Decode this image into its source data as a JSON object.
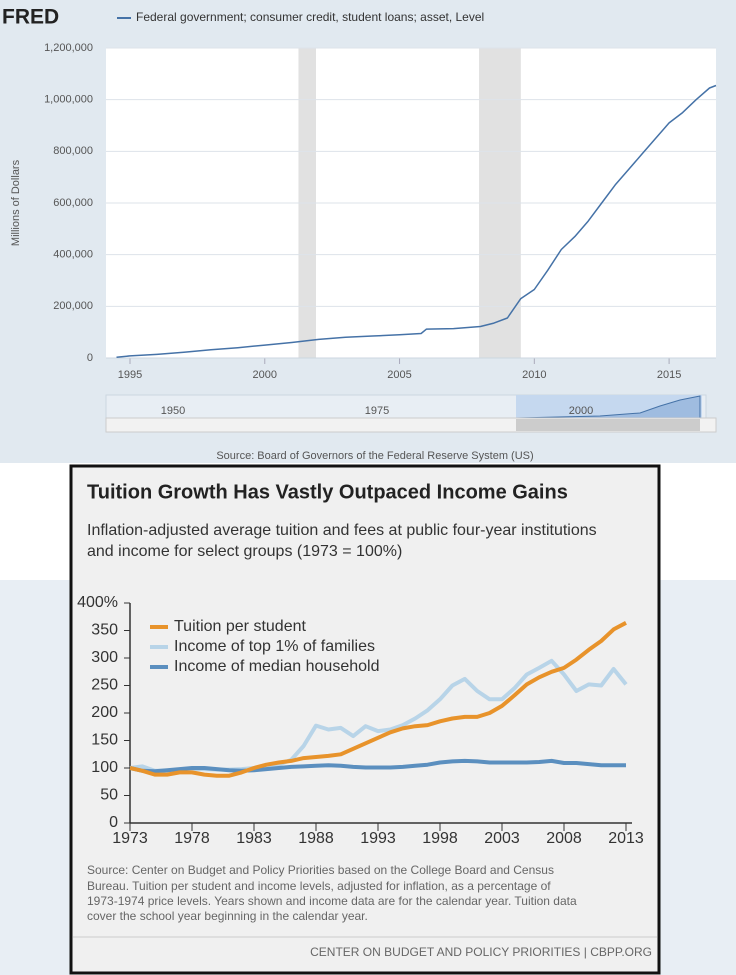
{
  "chart_data": [
    {
      "type": "line",
      "logo": "FRED",
      "y_label": "Millions of Dollars",
      "source": "Source: Board of Governors of the Federal Reserve System (US)",
      "navigator_labels": [
        "1950",
        "1975",
        "2000"
      ],
      "xlim": [
        1994.11,
        2016.74
      ],
      "xticks": [
        1995,
        2000,
        2005,
        2010,
        2015
      ],
      "ylim": [
        0,
        1200000
      ],
      "yticks": [
        0,
        {
          "value": 200000,
          "label": "200,000"
        },
        {
          "value": 400000,
          "label": "400,000"
        },
        {
          "value": 600000,
          "label": "600,000"
        },
        {
          "value": 800000,
          "label": "800,000"
        },
        {
          "value": 1000000,
          "label": "1,000,000"
        },
        {
          "value": 1200000,
          "label": "1,200,000"
        }
      ],
      "grid": true,
      "recessions": [
        [
          2001.25,
          2001.9
        ],
        [
          2007.95,
          2009.5
        ]
      ],
      "x": [
        1994.5,
        1995,
        1996,
        1997,
        1998,
        1999,
        2000,
        2001,
        2002,
        2003,
        2004,
        2005,
        2005.8,
        2006,
        2007,
        2008,
        2008.5,
        2009,
        2009.5,
        2010,
        2010.5,
        2011,
        2011.5,
        2012,
        2012.5,
        2013,
        2013.5,
        2014,
        2014.5,
        2015,
        2015.5,
        2016,
        2016.5,
        2016.74
      ],
      "series": [
        {
          "name": "Federal government; consumer credit, student loans; asset, Level",
          "color": "#4572a7",
          "values": [
            3000,
            8000,
            14000,
            22000,
            32000,
            40000,
            50000,
            60000,
            72000,
            80000,
            85000,
            90000,
            95000,
            112000,
            114000,
            122000,
            135000,
            155000,
            230000,
            265000,
            340000,
            420000,
            470000,
            530000,
            600000,
            670000,
            730000,
            790000,
            850000,
            910000,
            950000,
            1000000,
            1045000,
            1055000
          ]
        }
      ]
    },
    {
      "type": "line",
      "title": "Tuition Growth Has Vastly Outpaced Income Gains",
      "subtitle": [
        "Inflation-adjusted average tuition and fees at public four-year institutions",
        "and income for select groups (1973 = 100%)"
      ],
      "source": [
        "Source: Center on Budget and Policy Priorities based on the College Board and Census",
        "Bureau. Tuition per student and income levels, adjusted for inflation, as a percentage of",
        "1973-1974 price levels. Years shown and income data are for the calendar year. Tuition data",
        "cover the school year beginning in the calendar year."
      ],
      "footer": "CENTER ON BUDGET AND POLICY PRIORITIES | CBPP.ORG",
      "xlim": [
        1973,
        2013
      ],
      "xticks": [
        1973,
        1978,
        1983,
        1988,
        1993,
        1998,
        2003,
        2008,
        2013
      ],
      "ylim": [
        0,
        400
      ],
      "yticks": [
        0,
        50,
        100,
        150,
        200,
        250,
        300,
        350,
        {
          "value": 400,
          "label": "400%"
        }
      ],
      "grid": false,
      "x": [
        1973,
        1974,
        1975,
        1976,
        1977,
        1978,
        1979,
        1980,
        1981,
        1982,
        1983,
        1984,
        1985,
        1986,
        1987,
        1988,
        1989,
        1990,
        1991,
        1992,
        1993,
        1994,
        1995,
        1996,
        1997,
        1998,
        1999,
        2000,
        2001,
        2002,
        2003,
        2004,
        2005,
        2006,
        2007,
        2008,
        2009,
        2010,
        2011,
        2012,
        2013
      ],
      "series": [
        {
          "name": "Tuition per student",
          "color": "#e8932b",
          "values": [
            100,
            95,
            88,
            88,
            92,
            92,
            88,
            86,
            86,
            92,
            100,
            106,
            110,
            113,
            118,
            120,
            122,
            125,
            135,
            145,
            155,
            165,
            172,
            176,
            178,
            185,
            190,
            193,
            193,
            200,
            213,
            232,
            252,
            265,
            275,
            282,
            297,
            315,
            331,
            352,
            364
          ]
        },
        {
          "name": "Income of top 1% of families",
          "color": "#b8d4e8",
          "values": [
            100,
            103,
            95,
            95,
            97,
            98,
            98,
            97,
            97,
            98,
            100,
            103,
            106,
            115,
            140,
            177,
            170,
            173,
            158,
            176,
            167,
            170,
            178,
            190,
            205,
            225,
            250,
            262,
            240,
            225,
            225,
            245,
            270,
            282,
            295,
            270,
            240,
            252,
            250,
            280,
            252
          ]
        },
        {
          "name": "Income of median household",
          "color": "#5b8fbf",
          "values": [
            100,
            95,
            94,
            96,
            98,
            100,
            100,
            98,
            96,
            95,
            96,
            98,
            100,
            102,
            103,
            104,
            105,
            104,
            102,
            101,
            101,
            101,
            102,
            104,
            106,
            110,
            112,
            113,
            112,
            110,
            110,
            110,
            110,
            111,
            113,
            109,
            109,
            107,
            105,
            105,
            105
          ]
        }
      ]
    }
  ]
}
